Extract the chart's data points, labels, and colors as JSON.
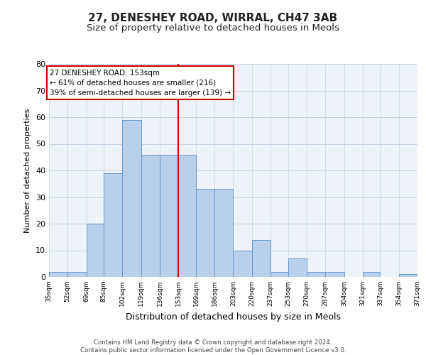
{
  "title_line1": "27, DENESHEY ROAD, WIRRAL, CH47 3AB",
  "title_line2": "Size of property relative to detached houses in Meols",
  "xlabel": "Distribution of detached houses by size in Meols",
  "ylabel": "Number of detached properties",
  "footer_line1": "Contains HM Land Registry data © Crown copyright and database right 2024.",
  "footer_line2": "Contains public sector information licensed under the Open Government Licence v3.0.",
  "annotation_line1": "27 DENESHEY ROAD: 153sqm",
  "annotation_line2": "← 61% of detached houses are smaller (216)",
  "annotation_line3": "39% of semi-detached houses are larger (139) →",
  "bin_edges": [
    35,
    52,
    69,
    85,
    102,
    119,
    136,
    153,
    169,
    186,
    203,
    220,
    237,
    253,
    270,
    287,
    304,
    321,
    337,
    354,
    371
  ],
  "bin_labels": [
    "35sqm",
    "52sqm",
    "69sqm",
    "85sqm",
    "102sqm",
    "119sqm",
    "136sqm",
    "153sqm",
    "169sqm",
    "186sqm",
    "203sqm",
    "220sqm",
    "237sqm",
    "253sqm",
    "270sqm",
    "287sqm",
    "304sqm",
    "321sqm",
    "337sqm",
    "354sqm",
    "371sqm"
  ],
  "bar_heights": [
    2,
    2,
    20,
    39,
    59,
    46,
    46,
    46,
    33,
    33,
    10,
    14,
    2,
    7,
    2,
    2,
    0,
    2,
    0,
    1
  ],
  "bar_color": "#b8d0ea",
  "bar_edgecolor": "#6699cc",
  "vline_color": "#cc0000",
  "vline_x": 153,
  "ylim": [
    0,
    80
  ],
  "yticks": [
    0,
    10,
    20,
    30,
    40,
    50,
    60,
    70,
    80
  ],
  "grid_color": "#c8d4e8",
  "background_color": "#eef2f9",
  "title_fontsize": 11,
  "subtitle_fontsize": 9.5,
  "ylabel_fontsize": 8,
  "xlabel_fontsize": 9,
  "annotation_box_color": "#ffffff",
  "annotation_border_color": "#cc0000",
  "annotation_fontsize": 7.5
}
